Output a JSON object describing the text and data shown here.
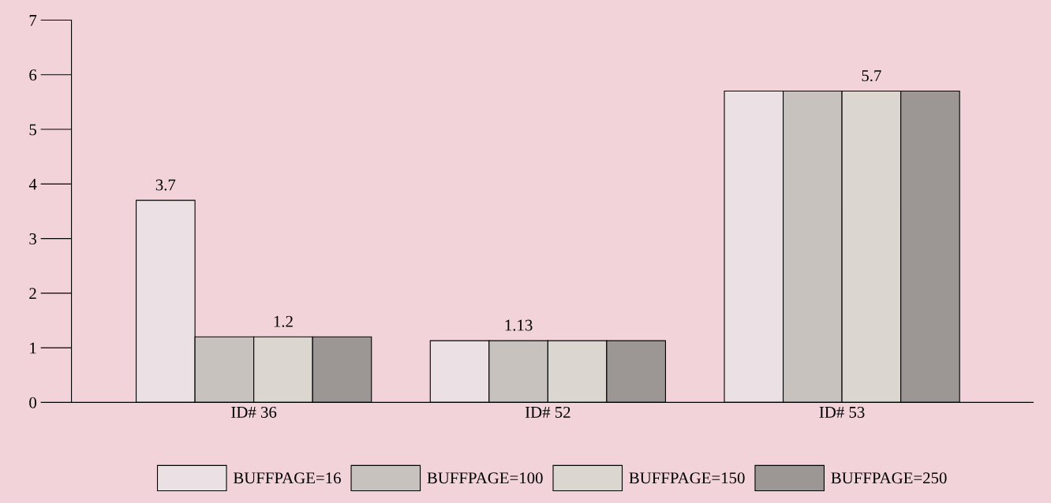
{
  "chart_data": {
    "type": "bar",
    "categories": [
      "ID# 36",
      "ID# 52",
      "ID# 53"
    ],
    "series": [
      {
        "name": "BUFFPAGE=16",
        "color": "#ebe1e4",
        "values": [
          3.7,
          1.13,
          5.7
        ],
        "value_labels": [
          "3.7",
          null,
          null
        ]
      },
      {
        "name": "BUFFPAGE=100",
        "color": "#c8c2bf",
        "values": [
          1.2,
          1.13,
          5.7
        ],
        "value_labels": [
          null,
          "1.13",
          null
        ]
      },
      {
        "name": "BUFFPAGE=150",
        "color": "#dcd6d0",
        "values": [
          1.2,
          1.13,
          5.7
        ],
        "value_labels": [
          "1.2",
          null,
          "5.7"
        ]
      },
      {
        "name": "BUFFPAGE=250",
        "color": "#9c9694",
        "values": [
          1.2,
          1.13,
          5.7
        ],
        "value_labels": [
          null,
          null,
          null
        ]
      }
    ],
    "ylim": [
      0,
      7
    ],
    "yticks": [
      0,
      1,
      2,
      3,
      4,
      5,
      6,
      7
    ],
    "grid": false,
    "legend": "bottom"
  }
}
